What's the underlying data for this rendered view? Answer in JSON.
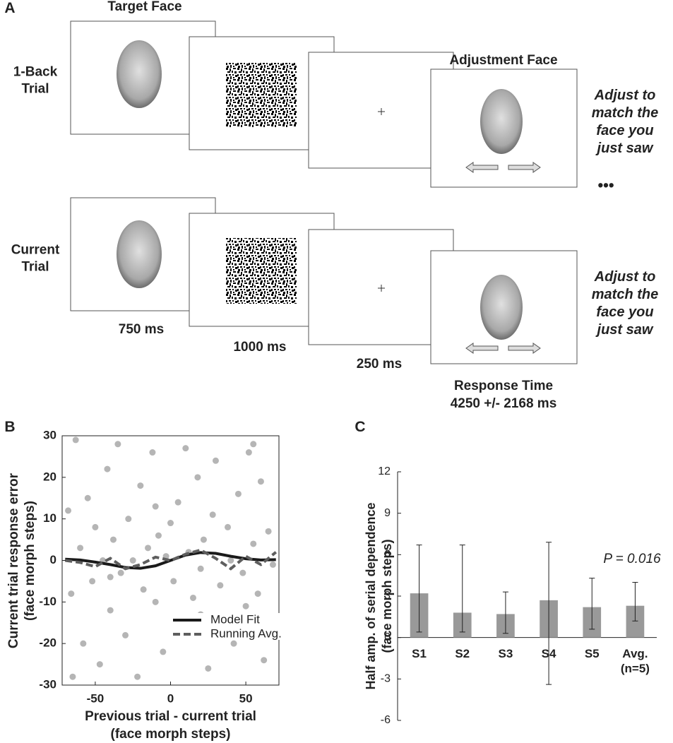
{
  "panel_a": {
    "label": "A",
    "target_face": "Target Face",
    "adjustment_face": "Adjustment Face",
    "rows": [
      {
        "label": "1-Back Trial",
        "instruction": "Adjust to match the face you just saw"
      },
      {
        "label": "Current Trial",
        "instruction": "Adjust to match the face you just saw"
      }
    ],
    "ellipsis": "•••",
    "durations": [
      "750 ms",
      "1000 ms",
      "250 ms"
    ],
    "response_time": [
      "Response Time",
      "4250 +/- 2168 ms"
    ]
  },
  "chart_data": [
    {
      "type": "scatter",
      "panel": "B",
      "xlabel_lines": [
        "Previous trial - current trial",
        "(face morph steps)"
      ],
      "ylabel_lines": [
        "Current trial response error",
        "(face morph steps)"
      ],
      "xlim": [
        -72,
        72
      ],
      "xticks": [
        -50,
        0,
        50
      ],
      "ylim": [
        -30,
        30
      ],
      "yticks": [
        -30,
        -20,
        -10,
        0,
        10,
        20,
        30
      ],
      "legend": "lower right",
      "points": {
        "color": "#b5b5b5",
        "x": [
          -68,
          -66,
          -63,
          -60,
          -58,
          -55,
          -52,
          -50,
          -47,
          -45,
          -42,
          -40,
          -38,
          -35,
          -33,
          -30,
          -28,
          -25,
          -22,
          -20,
          -18,
          -15,
          -12,
          -10,
          -8,
          -5,
          -3,
          0,
          2,
          5,
          8,
          10,
          12,
          15,
          18,
          20,
          22,
          25,
          28,
          30,
          33,
          35,
          38,
          40,
          42,
          45,
          48,
          50,
          52,
          55,
          58,
          60,
          62,
          65,
          68,
          -65,
          -40,
          -10,
          20,
          55
        ],
        "y": [
          12,
          -8,
          29,
          3,
          -20,
          15,
          -5,
          8,
          -25,
          0,
          22,
          -12,
          5,
          28,
          -3,
          -18,
          10,
          0,
          -28,
          18,
          -7,
          3,
          26,
          -10,
          6,
          -22,
          1,
          9,
          -5,
          14,
          -15,
          27,
          2,
          -9,
          20,
          -2,
          5,
          -26,
          11,
          24,
          -6,
          -14,
          8,
          0,
          -20,
          16,
          -3,
          -11,
          26,
          4,
          -8,
          19,
          -24,
          7,
          -1,
          -28,
          -4,
          13,
          -13,
          28
        ]
      },
      "series": [
        {
          "name": "Model Fit",
          "color": "#1a1a1a",
          "style": "solid",
          "x": [
            -70,
            -60,
            -50,
            -40,
            -30,
            -20,
            -10,
            0,
            10,
            20,
            30,
            40,
            50,
            60,
            70
          ],
          "values": [
            0.3,
            0.1,
            -0.4,
            -1.0,
            -1.7,
            -1.9,
            -1.3,
            0,
            1.3,
            1.9,
            1.7,
            1.0,
            0.4,
            0.1,
            0.2
          ]
        },
        {
          "name": "Running Avg.",
          "color": "#5e5e5e",
          "style": "dashed",
          "x": [
            -70,
            -60,
            -50,
            -40,
            -30,
            -20,
            -10,
            0,
            10,
            20,
            30,
            40,
            50,
            60,
            70
          ],
          "values": [
            0,
            -0.5,
            -1.5,
            0.5,
            -2,
            -1,
            0.8,
            0,
            1.5,
            2.5,
            0.5,
            -2,
            1,
            -1,
            2
          ]
        }
      ]
    },
    {
      "type": "bar",
      "panel": "C",
      "ylabel_lines": [
        "Half amp. of serial dependence",
        "(face morph steps)"
      ],
      "categories": [
        "S1",
        "S2",
        "S3",
        "S4",
        "S5",
        "Avg. (n=5)"
      ],
      "values": [
        3.2,
        1.8,
        1.7,
        2.7,
        2.2,
        2.3
      ],
      "ci_low": [
        0.4,
        0.4,
        0.3,
        -3.4,
        0.6,
        1.2
      ],
      "ci_high": [
        6.7,
        6.7,
        3.3,
        6.9,
        4.3,
        4.0
      ],
      "color": "#999999",
      "ylim": [
        -6,
        12
      ],
      "yticks": [
        -6,
        -3,
        0,
        3,
        6,
        9,
        12
      ],
      "annotation": "P = 0.016"
    }
  ]
}
